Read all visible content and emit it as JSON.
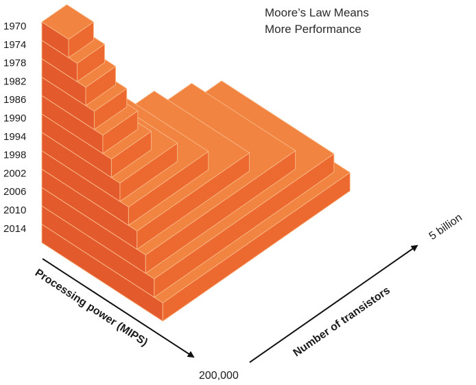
{
  "chart_data": {
    "type": "stepped-pyramid",
    "title_lines": [
      "Moore’s Law Means",
      "More Performance"
    ],
    "categories": [
      "1970",
      "1974",
      "1978",
      "1982",
      "1986",
      "1990",
      "1994",
      "1998",
      "2002",
      "2006",
      "2010",
      "2014"
    ],
    "axes": {
      "left": {
        "label": "Processing power (MIPS)",
        "end_label": "200,000"
      },
      "right": {
        "label": "Number of transistors",
        "end_label": "5 billion"
      }
    }
  },
  "colors": {
    "top": "#F08440",
    "left_face": "#E35B2C",
    "right_face": "#EC6A30",
    "edge": "#FBB98A",
    "arrow": "#111111"
  }
}
